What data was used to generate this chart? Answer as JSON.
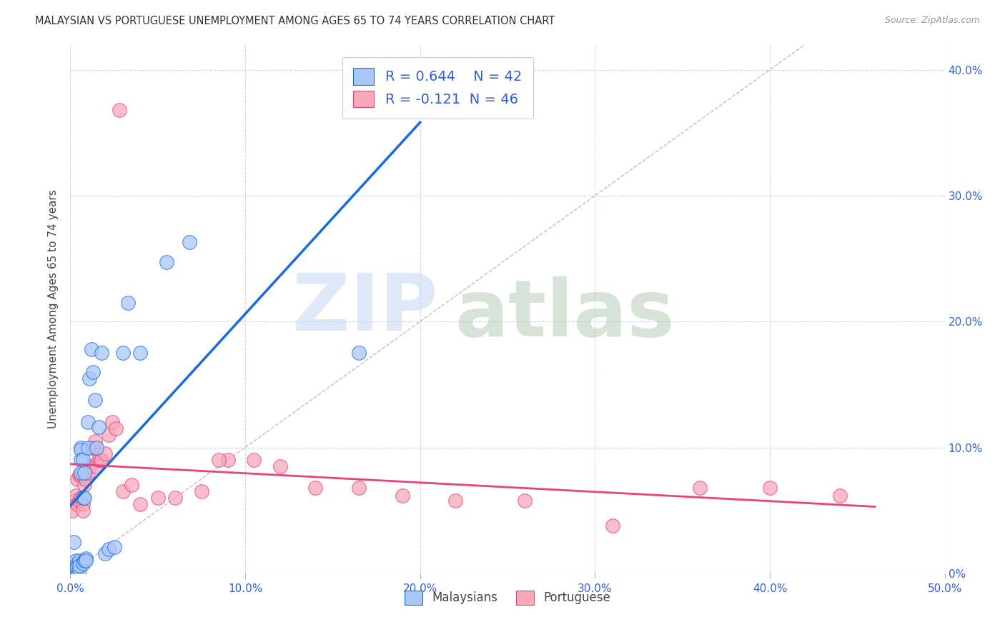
{
  "title": "MALAYSIAN VS PORTUGUESE UNEMPLOYMENT AMONG AGES 65 TO 74 YEARS CORRELATION CHART",
  "source": "Source: ZipAtlas.com",
  "ylabel": "Unemployment Among Ages 65 to 74 years",
  "xlim": [
    0.0,
    0.5
  ],
  "ylim": [
    0.0,
    0.42
  ],
  "malaysian_color": "#a8c8f8",
  "portuguese_color": "#f8a8b8",
  "trend_malaysian_color": "#1a6ae0",
  "trend_portuguese_color": "#e84080",
  "diagonal_color": "#b8b8b8",
  "background_color": "#ffffff",
  "grid_color": "#d0d8e8",
  "malaysian_x": [
    0.001,
    0.002,
    0.002,
    0.003,
    0.003,
    0.003,
    0.004,
    0.004,
    0.004,
    0.005,
    0.005,
    0.005,
    0.006,
    0.006,
    0.006,
    0.006,
    0.007,
    0.007,
    0.007,
    0.008,
    0.008,
    0.008,
    0.009,
    0.009,
    0.01,
    0.01,
    0.011,
    0.012,
    0.013,
    0.014,
    0.015,
    0.016,
    0.018,
    0.02,
    0.022,
    0.025,
    0.03,
    0.033,
    0.04,
    0.055,
    0.068,
    0.165
  ],
  "malaysian_y": [
    0.003,
    0.025,
    0.005,
    0.005,
    0.01,
    0.005,
    0.008,
    0.003,
    0.005,
    0.003,
    0.01,
    0.006,
    0.1,
    0.098,
    0.09,
    0.08,
    0.09,
    0.06,
    0.008,
    0.01,
    0.08,
    0.06,
    0.012,
    0.01,
    0.12,
    0.1,
    0.155,
    0.178,
    0.16,
    0.138,
    0.1,
    0.116,
    0.175,
    0.016,
    0.019,
    0.021,
    0.175,
    0.215,
    0.175,
    0.247,
    0.263,
    0.175
  ],
  "portuguese_x": [
    0.001,
    0.002,
    0.003,
    0.004,
    0.004,
    0.005,
    0.005,
    0.006,
    0.006,
    0.007,
    0.007,
    0.008,
    0.009,
    0.01,
    0.011,
    0.012,
    0.013,
    0.014,
    0.015,
    0.016,
    0.017,
    0.018,
    0.02,
    0.022,
    0.024,
    0.026,
    0.03,
    0.035,
    0.04,
    0.05,
    0.06,
    0.075,
    0.09,
    0.105,
    0.12,
    0.14,
    0.165,
    0.19,
    0.22,
    0.26,
    0.31,
    0.36,
    0.4,
    0.44,
    0.085,
    0.028
  ],
  "portuguese_y": [
    0.05,
    0.058,
    0.062,
    0.055,
    0.075,
    0.078,
    0.058,
    0.078,
    0.06,
    0.055,
    0.05,
    0.07,
    0.075,
    0.08,
    0.085,
    0.1,
    0.1,
    0.105,
    0.085,
    0.09,
    0.09,
    0.09,
    0.095,
    0.11,
    0.12,
    0.115,
    0.065,
    0.07,
    0.055,
    0.06,
    0.06,
    0.065,
    0.09,
    0.09,
    0.085,
    0.068,
    0.068,
    0.062,
    0.058,
    0.058,
    0.038,
    0.068,
    0.068,
    0.062,
    0.09,
    0.368
  ],
  "trend_m_x0": 0.0,
  "trend_m_x1": 0.2,
  "trend_p_x0": 0.0,
  "trend_p_x1": 0.46
}
